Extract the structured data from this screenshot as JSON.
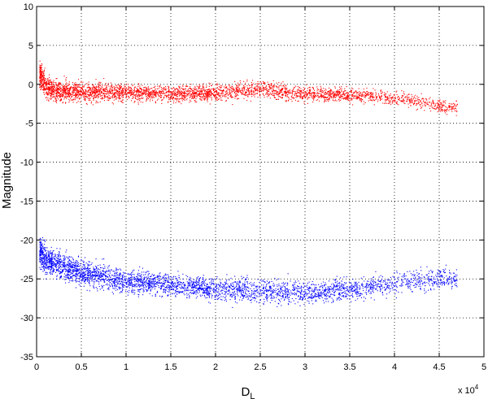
{
  "chart_data": {
    "type": "scatter",
    "title": "",
    "xlabel": "D",
    "xlabel_sub": "L",
    "ylabel": "Magnitude",
    "x_exponent_label": "x 10",
    "x_exponent_value": "4",
    "xlim": [
      0,
      50000
    ],
    "ylim": [
      -35,
      10
    ],
    "x_ticks": [
      0,
      5000,
      10000,
      15000,
      20000,
      25000,
      30000,
      35000,
      40000,
      45000,
      50000
    ],
    "x_tick_labels": [
      "0",
      "0.5",
      "1",
      "1.5",
      "2",
      "2.5",
      "3",
      "3.5",
      "4",
      "4.5",
      "5"
    ],
    "y_ticks": [
      10,
      5,
      0,
      -5,
      -10,
      -15,
      -20,
      -25,
      -30,
      -35
    ],
    "y_tick_labels": [
      "10",
      "5",
      "0",
      "-5",
      "-10",
      "-15",
      "-20",
      "-25",
      "-30",
      "-35"
    ],
    "grid": true,
    "series": [
      {
        "color": "#ff0000",
        "trend_x": [
          300,
          1000,
          2000,
          5000,
          10000,
          15000,
          20000,
          25000,
          30000,
          35000,
          38000,
          42000,
          45000
        ],
        "trend_y": [
          1.5,
          -0.3,
          -0.8,
          -0.9,
          -1.0,
          -1.2,
          -1.0,
          -0.6,
          -1.2,
          -1.3,
          -1.5,
          -2.0,
          -2.8
        ],
        "spread": [
          1.5,
          1.3,
          1.1,
          1.0,
          0.9,
          0.9,
          0.9,
          0.9,
          0.8,
          0.7,
          0.7,
          0.8,
          0.8
        ]
      },
      {
        "color": "#0000ff",
        "trend_x": [
          300,
          1000,
          2000,
          5000,
          10000,
          15000,
          20000,
          25000,
          30000,
          35000,
          40000,
          45000
        ],
        "trend_y": [
          -21.5,
          -22.5,
          -23.0,
          -24.2,
          -25.2,
          -25.7,
          -26.2,
          -26.5,
          -26.7,
          -26.3,
          -25.5,
          -24.8
        ],
        "spread": [
          1.6,
          1.5,
          1.4,
          1.3,
          1.2,
          1.2,
          1.2,
          1.3,
          1.2,
          1.1,
          1.2,
          1.2
        ]
      }
    ]
  }
}
